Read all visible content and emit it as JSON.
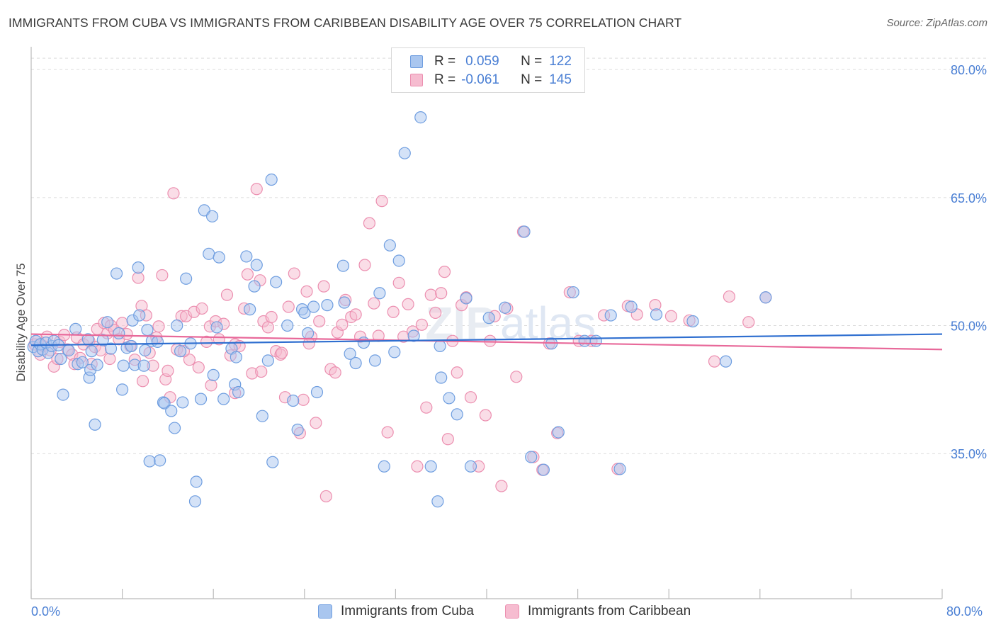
{
  "header": {
    "title": "IMMIGRANTS FROM CUBA VS IMMIGRANTS FROM CARIBBEAN DISABILITY AGE OVER 75 CORRELATION CHART",
    "source": "Source: ZipAtlas.com"
  },
  "legend": {
    "rows": [
      {
        "r_label": "R =",
        "r_value": "0.059",
        "n_label": "N =",
        "n_value": "122"
      },
      {
        "r_label": "R =",
        "r_value": "-0.061",
        "n_label": "N =",
        "n_value": "145"
      }
    ]
  },
  "axis": {
    "y_title": "Disability Age Over 75",
    "x_min_label": "0.0%",
    "x_max_label": "80.0%"
  },
  "colors": {
    "cuba_fill": "#a9c6ef",
    "cuba_stroke": "#6f9ee0",
    "cuba_line": "#2f6fd0",
    "carib_fill": "#f6bcd0",
    "carib_stroke": "#ec8fb0",
    "carib_line": "#e8699a",
    "tick_label": "#4a7fd4",
    "grid": "#dcdcdc"
  },
  "chart_data": {
    "type": "scatter",
    "title": "IMMIGRANTS FROM CUBA VS IMMIGRANTS FROM CARIBBEAN DISABILITY AGE OVER 75 CORRELATION CHART",
    "xlabel": "",
    "ylabel": "Disability Age Over 75",
    "xlim": [
      0,
      80
    ],
    "ylim": [
      18,
      83
    ],
    "y_ticks": [
      35,
      50,
      65,
      80
    ],
    "y_tick_labels": [
      "35.0%",
      "50.0%",
      "65.0%",
      "80.0%"
    ],
    "grid": "horizontal dashed",
    "legend_position": "top-center",
    "series": [
      {
        "name": "Immigrants from Cuba",
        "r": 0.059,
        "n": 122,
        "trend": [
          [
            0,
            47.7
          ],
          [
            80,
            49.0
          ]
        ],
        "points": [
          [
            0.2,
            47.5
          ],
          [
            0.4,
            48.2
          ],
          [
            0.6,
            47.0
          ],
          [
            0.8,
            47.8
          ],
          [
            1.0,
            47.2
          ],
          [
            1.3,
            48.0
          ],
          [
            1.5,
            46.8
          ],
          [
            1.8,
            47.6
          ],
          [
            2.0,
            48.2
          ],
          [
            2.4,
            47.7
          ],
          [
            2.6,
            46.1
          ],
          [
            2.8,
            41.9
          ],
          [
            3.3,
            47.1
          ],
          [
            3.9,
            49.6
          ],
          [
            4.1,
            45.5
          ],
          [
            4.5,
            45.7
          ],
          [
            5.0,
            48.4
          ],
          [
            5.1,
            43.9
          ],
          [
            5.2,
            44.8
          ],
          [
            5.3,
            47.0
          ],
          [
            5.6,
            38.4
          ],
          [
            5.8,
            45.4
          ],
          [
            6.3,
            48.3
          ],
          [
            6.7,
            50.4
          ],
          [
            7.0,
            47.3
          ],
          [
            7.5,
            56.1
          ],
          [
            7.7,
            49.1
          ],
          [
            8.0,
            42.5
          ],
          [
            8.1,
            45.3
          ],
          [
            8.4,
            47.4
          ],
          [
            8.8,
            47.6
          ],
          [
            8.9,
            50.6
          ],
          [
            9.1,
            45.4
          ],
          [
            9.4,
            56.8
          ],
          [
            9.5,
            51.2
          ],
          [
            9.9,
            45.3
          ],
          [
            10.0,
            47.1
          ],
          [
            10.2,
            49.5
          ],
          [
            10.4,
            34.1
          ],
          [
            10.6,
            48.2
          ],
          [
            11.1,
            48.1
          ],
          [
            11.3,
            34.2
          ],
          [
            11.6,
            41.0
          ],
          [
            11.7,
            40.9
          ],
          [
            12.3,
            40.0
          ],
          [
            12.6,
            38.0
          ],
          [
            12.8,
            50.0
          ],
          [
            13.1,
            47.0
          ],
          [
            13.3,
            41.0
          ],
          [
            13.6,
            55.5
          ],
          [
            14.0,
            47.9
          ],
          [
            14.5,
            31.7
          ],
          [
            14.4,
            29.4
          ],
          [
            14.9,
            41.4
          ],
          [
            15.2,
            63.5
          ],
          [
            15.6,
            58.4
          ],
          [
            15.9,
            62.8
          ],
          [
            16.0,
            44.2
          ],
          [
            16.3,
            49.8
          ],
          [
            16.5,
            58.0
          ],
          [
            16.9,
            41.4
          ],
          [
            17.6,
            47.3
          ],
          [
            17.9,
            43.1
          ],
          [
            18.0,
            46.3
          ],
          [
            18.2,
            42.2
          ],
          [
            18.9,
            58.1
          ],
          [
            19.2,
            51.9
          ],
          [
            19.6,
            54.6
          ],
          [
            19.8,
            57.1
          ],
          [
            20.3,
            39.4
          ],
          [
            20.8,
            45.9
          ],
          [
            21.1,
            67.1
          ],
          [
            21.2,
            34.0
          ],
          [
            21.5,
            55.1
          ],
          [
            22.5,
            50.0
          ],
          [
            23.0,
            41.2
          ],
          [
            23.4,
            37.8
          ],
          [
            23.8,
            51.9
          ],
          [
            24.0,
            51.5
          ],
          [
            24.3,
            49.1
          ],
          [
            24.8,
            52.2
          ],
          [
            25.1,
            42.2
          ],
          [
            26.0,
            52.4
          ],
          [
            27.4,
            57.0
          ],
          [
            27.5,
            52.7
          ],
          [
            28.0,
            46.7
          ],
          [
            28.5,
            45.6
          ],
          [
            29.2,
            48.0
          ],
          [
            30.2,
            45.9
          ],
          [
            30.6,
            53.8
          ],
          [
            31.0,
            33.5
          ],
          [
            31.5,
            59.4
          ],
          [
            31.9,
            46.9
          ],
          [
            32.3,
            57.6
          ],
          [
            32.8,
            70.2
          ],
          [
            33.6,
            48.8
          ],
          [
            34.2,
            74.4
          ],
          [
            35.1,
            33.5
          ],
          [
            35.7,
            29.4
          ],
          [
            35.9,
            47.6
          ],
          [
            36.0,
            43.9
          ],
          [
            36.7,
            41.5
          ],
          [
            37.4,
            39.6
          ],
          [
            38.2,
            53.2
          ],
          [
            38.6,
            33.5
          ],
          [
            40.2,
            50.9
          ],
          [
            41.6,
            52.1
          ],
          [
            43.3,
            61.0
          ],
          [
            43.9,
            34.6
          ],
          [
            45.0,
            33.1
          ],
          [
            45.7,
            47.9
          ],
          [
            46.3,
            37.5
          ],
          [
            47.6,
            53.9
          ],
          [
            48.6,
            48.2
          ],
          [
            49.6,
            48.2
          ],
          [
            50.9,
            51.2
          ],
          [
            51.7,
            33.2
          ],
          [
            52.7,
            52.2
          ],
          [
            54.9,
            51.3
          ],
          [
            58.1,
            50.5
          ],
          [
            61.0,
            45.8
          ],
          [
            64.5,
            53.3
          ]
        ]
      },
      {
        "name": "Immigrants from Caribbean",
        "r": -0.061,
        "n": 145,
        "trend": [
          [
            0,
            49.0
          ],
          [
            80,
            47.2
          ]
        ],
        "points": [
          [
            0.3,
            47.8
          ],
          [
            0.6,
            48.3
          ],
          [
            0.8,
            46.6
          ],
          [
            1.1,
            47.6
          ],
          [
            1.4,
            48.7
          ],
          [
            1.7,
            47.1
          ],
          [
            2.0,
            45.2
          ],
          [
            2.3,
            46.1
          ],
          [
            2.5,
            48.1
          ],
          [
            2.9,
            48.9
          ],
          [
            3.2,
            47.2
          ],
          [
            3.6,
            46.6
          ],
          [
            4.0,
            48.6
          ],
          [
            4.3,
            46.2
          ],
          [
            4.6,
            47.8
          ],
          [
            5.1,
            48.2
          ],
          [
            5.3,
            45.5
          ],
          [
            5.6,
            47.5
          ],
          [
            5.8,
            49.6
          ],
          [
            6.1,
            47.1
          ],
          [
            6.4,
            50.3
          ],
          [
            6.7,
            49.1
          ],
          [
            7.0,
            50.0
          ],
          [
            7.3,
            49.5
          ],
          [
            7.7,
            48.4
          ],
          [
            8.0,
            50.3
          ],
          [
            8.4,
            49.0
          ],
          [
            8.7,
            47.6
          ],
          [
            9.1,
            46.0
          ],
          [
            9.4,
            55.6
          ],
          [
            9.7,
            52.3
          ],
          [
            10.1,
            51.2
          ],
          [
            10.4,
            46.8
          ],
          [
            10.7,
            45.3
          ],
          [
            11.0,
            48.6
          ],
          [
            11.2,
            49.9
          ],
          [
            11.5,
            55.9
          ],
          [
            11.8,
            43.7
          ],
          [
            12.2,
            41.6
          ],
          [
            12.5,
            65.5
          ],
          [
            12.8,
            47.2
          ],
          [
            13.2,
            51.1
          ],
          [
            13.6,
            51.1
          ],
          [
            13.9,
            46.0
          ],
          [
            14.3,
            51.6
          ],
          [
            14.7,
            45.1
          ],
          [
            15.0,
            52.0
          ],
          [
            15.4,
            48.1
          ],
          [
            15.7,
            49.9
          ],
          [
            16.2,
            50.5
          ],
          [
            16.5,
            48.4
          ],
          [
            16.9,
            50.2
          ],
          [
            17.2,
            53.6
          ],
          [
            17.5,
            46.5
          ],
          [
            17.9,
            47.8
          ],
          [
            18.3,
            47.6
          ],
          [
            18.7,
            52.0
          ],
          [
            19.0,
            56.0
          ],
          [
            19.4,
            44.4
          ],
          [
            19.8,
            66.0
          ],
          [
            20.1,
            55.3
          ],
          [
            20.4,
            50.5
          ],
          [
            20.8,
            49.8
          ],
          [
            21.1,
            51.0
          ],
          [
            21.5,
            47.0
          ],
          [
            21.9,
            46.6
          ],
          [
            22.3,
            41.6
          ],
          [
            22.6,
            52.2
          ],
          [
            23.1,
            56.1
          ],
          [
            23.6,
            37.4
          ],
          [
            23.9,
            41.3
          ],
          [
            24.2,
            54.0
          ],
          [
            24.6,
            48.7
          ],
          [
            25.0,
            38.6
          ],
          [
            25.3,
            50.5
          ],
          [
            25.7,
            54.6
          ],
          [
            25.9,
            30.0
          ],
          [
            26.3,
            44.9
          ],
          [
            26.9,
            49.2
          ],
          [
            27.3,
            50.1
          ],
          [
            27.6,
            53.0
          ],
          [
            28.1,
            51.0
          ],
          [
            28.5,
            51.3
          ],
          [
            28.9,
            48.7
          ],
          [
            29.3,
            57.1
          ],
          [
            29.7,
            62.0
          ],
          [
            30.1,
            52.6
          ],
          [
            30.5,
            48.8
          ],
          [
            30.8,
            64.6
          ],
          [
            31.3,
            37.5
          ],
          [
            31.8,
            51.6
          ],
          [
            32.3,
            55.0
          ],
          [
            32.7,
            48.7
          ],
          [
            33.1,
            52.5
          ],
          [
            33.5,
            49.3
          ],
          [
            33.9,
            33.5
          ],
          [
            34.3,
            50.1
          ],
          [
            34.7,
            40.4
          ],
          [
            35.1,
            53.6
          ],
          [
            35.5,
            51.5
          ],
          [
            36.0,
            53.8
          ],
          [
            36.3,
            56.3
          ],
          [
            36.6,
            36.7
          ],
          [
            37.0,
            48.2
          ],
          [
            37.4,
            44.5
          ],
          [
            37.8,
            52.4
          ],
          [
            38.2,
            53.3
          ],
          [
            38.6,
            41.6
          ],
          [
            39.3,
            33.5
          ],
          [
            39.9,
            39.5
          ],
          [
            40.3,
            48.2
          ],
          [
            40.7,
            51.1
          ],
          [
            41.3,
            31.2
          ],
          [
            41.8,
            52.0
          ],
          [
            42.6,
            44.0
          ],
          [
            43.2,
            61.0
          ],
          [
            44.1,
            34.6
          ],
          [
            44.9,
            33.1
          ],
          [
            45.5,
            47.9
          ],
          [
            46.2,
            37.4
          ],
          [
            47.3,
            53.9
          ],
          [
            48.1,
            48.2
          ],
          [
            49.2,
            48.2
          ],
          [
            50.3,
            51.2
          ],
          [
            51.5,
            33.2
          ],
          [
            52.4,
            52.3
          ],
          [
            53.2,
            51.3
          ],
          [
            54.8,
            52.4
          ],
          [
            56.2,
            51.1
          ],
          [
            57.8,
            50.6
          ],
          [
            60.0,
            45.8
          ],
          [
            61.3,
            53.4
          ],
          [
            63.0,
            50.4
          ],
          [
            64.5,
            53.3
          ],
          [
            3.8,
            45.5
          ],
          [
            6.9,
            46.1
          ],
          [
            9.8,
            43.5
          ],
          [
            12.0,
            44.7
          ],
          [
            13.4,
            47.0
          ],
          [
            15.8,
            43.0
          ],
          [
            17.9,
            42.1
          ],
          [
            20.2,
            44.6
          ],
          [
            22.0,
            46.8
          ],
          [
            24.4,
            47.9
          ],
          [
            26.7,
            44.5
          ]
        ]
      }
    ]
  }
}
